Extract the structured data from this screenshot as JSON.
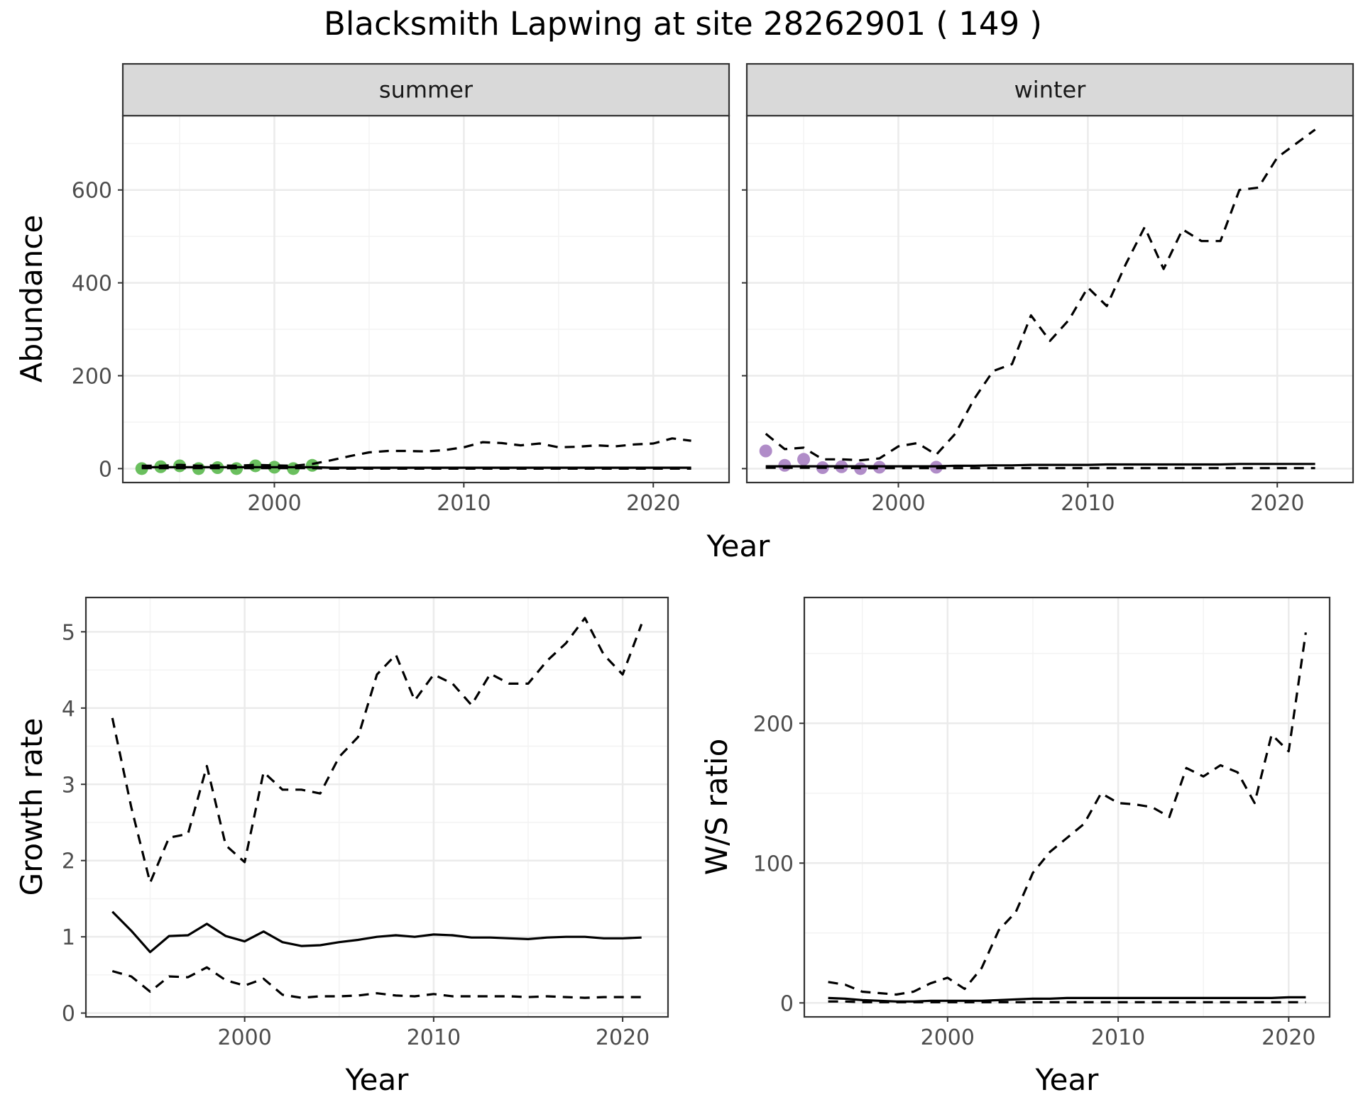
{
  "title": "Blacksmith Lapwing at site 28262901 ( 149 )",
  "colors": {
    "summer_points": "#6abf5e",
    "winter_points": "#b08cc8",
    "line": "#000000",
    "strip_bg": "#d9d9d9",
    "grid": "#ebebeb"
  },
  "chart_data": [
    {
      "type": "line",
      "facet": "summer",
      "xlabel": "Year",
      "ylabel": "Abundance",
      "xlim": [
        1992,
        2024
      ],
      "ylim": [
        -30,
        760
      ],
      "x_ticks": [
        "2000",
        "2010",
        "2020"
      ],
      "y_ticks": [
        "0",
        "200",
        "400",
        "600"
      ],
      "grid": true,
      "series": [
        {
          "style": "points",
          "x": [
            1993,
            1994,
            1995,
            1996,
            1997,
            1998,
            1999,
            2000,
            2001,
            2002
          ],
          "y": [
            0,
            4,
            6,
            0,
            2,
            0,
            6,
            3,
            0,
            7
          ]
        },
        {
          "style": "solid",
          "x": [
            1993,
            1994,
            1995,
            1996,
            1997,
            1998,
            1999,
            2000,
            2001,
            2002,
            2003,
            2004,
            2005,
            2006,
            2007,
            2008,
            2009,
            2010,
            2011,
            2012,
            2013,
            2014,
            2015,
            2016,
            2017,
            2018,
            2019,
            2020,
            2021,
            2022
          ],
          "y": [
            3,
            3,
            3,
            3,
            3,
            3,
            3,
            3,
            3,
            3,
            2,
            2,
            2,
            2,
            2,
            2,
            2,
            2,
            2,
            2,
            2,
            2,
            2,
            2,
            2,
            2,
            2,
            2,
            2,
            2
          ]
        },
        {
          "style": "dashed",
          "x": [
            1993,
            1994,
            1995,
            1996,
            1997,
            1998,
            1999,
            2000,
            2001,
            2002,
            2003,
            2004,
            2005,
            2006,
            2007,
            2008,
            2009,
            2010,
            2011,
            2012,
            2013,
            2014,
            2015,
            2016,
            2017,
            2018,
            2019,
            2020,
            2021,
            2022
          ],
          "y": [
            6,
            6,
            8,
            6,
            7,
            6,
            8,
            7,
            6,
            10,
            18,
            27,
            35,
            38,
            38,
            37,
            40,
            46,
            57,
            55,
            50,
            54,
            46,
            47,
            50,
            48,
            52,
            54,
            65,
            60
          ]
        },
        {
          "style": "dashed",
          "x": [
            1993,
            1994,
            1995,
            1996,
            1997,
            1998,
            1999,
            2000,
            2001,
            2002,
            2003,
            2004,
            2005,
            2006,
            2007,
            2008,
            2009,
            2010,
            2011,
            2012,
            2013,
            2014,
            2015,
            2016,
            2017,
            2018,
            2019,
            2020,
            2021,
            2022
          ],
          "y": [
            1,
            1,
            1,
            1,
            1,
            1,
            1,
            1,
            1,
            1,
            0,
            0,
            0,
            0,
            0,
            0,
            0,
            0,
            0,
            0,
            0,
            0,
            0,
            0,
            0,
            0,
            0,
            0,
            0,
            0
          ]
        }
      ]
    },
    {
      "type": "line",
      "facet": "winter",
      "xlabel": "Year",
      "ylabel": "Abundance",
      "xlim": [
        1992,
        2024
      ],
      "ylim": [
        -30,
        760
      ],
      "x_ticks": [
        "2000",
        "2010",
        "2020"
      ],
      "y_ticks": [
        "0",
        "200",
        "400",
        "600"
      ],
      "grid": true,
      "series": [
        {
          "style": "points",
          "x": [
            1993,
            1994,
            1995,
            1996,
            1997,
            1998,
            1999,
            2002
          ],
          "y": [
            38,
            7,
            20,
            2,
            4,
            0,
            3,
            3
          ]
        },
        {
          "style": "solid",
          "x": [
            1993,
            1994,
            1995,
            1996,
            1997,
            1998,
            1999,
            2000,
            2001,
            2002,
            2003,
            2004,
            2005,
            2006,
            2007,
            2008,
            2009,
            2010,
            2011,
            2012,
            2013,
            2014,
            2015,
            2016,
            2017,
            2018,
            2019,
            2020,
            2021,
            2022
          ],
          "y": [
            5,
            5,
            5,
            5,
            5,
            5,
            5,
            5,
            5,
            5,
            6,
            6,
            7,
            7,
            8,
            8,
            8,
            8,
            9,
            9,
            9,
            9,
            9,
            9,
            9,
            10,
            10,
            10,
            10,
            10
          ]
        },
        {
          "style": "dashed",
          "x": [
            1993,
            1994,
            1995,
            1996,
            1997,
            1998,
            1999,
            2000,
            2001,
            2002,
            2003,
            2004,
            2005,
            2006,
            2007,
            2008,
            2009,
            2010,
            2011,
            2012,
            2013,
            2014,
            2015,
            2016,
            2017,
            2018,
            2019,
            2020,
            2021,
            2022
          ],
          "y": [
            75,
            42,
            45,
            20,
            20,
            18,
            22,
            48,
            55,
            30,
            75,
            150,
            210,
            225,
            330,
            275,
            320,
            390,
            350,
            440,
            520,
            430,
            515,
            490,
            490,
            600,
            605,
            670,
            700,
            730
          ]
        },
        {
          "style": "dashed",
          "x": [
            1993,
            1994,
            1995,
            1996,
            1997,
            1998,
            1999,
            2000,
            2001,
            2002,
            2003,
            2004,
            2005,
            2006,
            2007,
            2008,
            2009,
            2010,
            2011,
            2012,
            2013,
            2014,
            2015,
            2016,
            2017,
            2018,
            2019,
            2020,
            2021,
            2022
          ],
          "y": [
            2,
            2,
            2,
            2,
            2,
            1,
            1,
            1,
            1,
            1,
            1,
            1,
            1,
            1,
            1,
            1,
            1,
            1,
            1,
            1,
            1,
            1,
            1,
            1,
            1,
            1,
            1,
            1,
            1,
            1
          ]
        }
      ]
    },
    {
      "type": "line",
      "xlabel": "Year",
      "ylabel": "Growth rate",
      "xlim": [
        1991.6,
        2022.4
      ],
      "ylim": [
        -0.05,
        5.45
      ],
      "x_ticks": [
        "2000",
        "2010",
        "2020"
      ],
      "y_ticks": [
        "0",
        "1",
        "2",
        "3",
        "4",
        "5"
      ],
      "grid": true,
      "series": [
        {
          "style": "solid",
          "x": [
            1993,
            1994,
            1995,
            1996,
            1997,
            1998,
            1999,
            2000,
            2001,
            2002,
            2003,
            2004,
            2005,
            2006,
            2007,
            2008,
            2009,
            2010,
            2011,
            2012,
            2013,
            2014,
            2015,
            2016,
            2017,
            2018,
            2019,
            2020,
            2021
          ],
          "y": [
            1.33,
            1.08,
            0.8,
            1.01,
            1.02,
            1.17,
            1.01,
            0.94,
            1.07,
            0.93,
            0.88,
            0.89,
            0.93,
            0.96,
            1.0,
            1.02,
            1.0,
            1.03,
            1.02,
            0.99,
            0.99,
            0.98,
            0.97,
            0.99,
            1.0,
            1.0,
            0.98,
            0.98,
            0.99
          ]
        },
        {
          "style": "dashed",
          "x": [
            1993,
            1994,
            1995,
            1996,
            1997,
            1998,
            1999,
            2000,
            2001,
            2002,
            2003,
            2004,
            2005,
            2006,
            2007,
            2008,
            2009,
            2010,
            2011,
            2012,
            2013,
            2014,
            2015,
            2016,
            2017,
            2018,
            2019,
            2020,
            2021
          ],
          "y": [
            3.87,
            2.7,
            1.71,
            2.3,
            2.35,
            3.24,
            2.2,
            1.98,
            3.16,
            2.93,
            2.93,
            2.88,
            3.36,
            3.62,
            4.44,
            4.7,
            4.1,
            4.44,
            4.32,
            4.04,
            4.45,
            4.32,
            4.32,
            4.62,
            4.85,
            5.18,
            4.7,
            4.44,
            5.1
          ]
        },
        {
          "style": "dashed",
          "x": [
            1993,
            1994,
            1995,
            1996,
            1997,
            1998,
            1999,
            2000,
            2001,
            2002,
            2003,
            2004,
            2005,
            2006,
            2007,
            2008,
            2009,
            2010,
            2011,
            2012,
            2013,
            2014,
            2015,
            2016,
            2017,
            2018,
            2019,
            2020,
            2021
          ],
          "y": [
            0.55,
            0.48,
            0.28,
            0.48,
            0.47,
            0.6,
            0.43,
            0.36,
            0.45,
            0.24,
            0.2,
            0.22,
            0.22,
            0.23,
            0.26,
            0.23,
            0.22,
            0.25,
            0.22,
            0.22,
            0.22,
            0.22,
            0.21,
            0.22,
            0.21,
            0.2,
            0.21,
            0.21,
            0.21
          ]
        }
      ]
    },
    {
      "type": "line",
      "xlabel": "Year",
      "ylabel": "W/S ratio",
      "xlim": [
        1991.6,
        2022.4
      ],
      "ylim": [
        -10,
        290
      ],
      "x_ticks": [
        "2000",
        "2010",
        "2020"
      ],
      "y_ticks": [
        "0",
        "100",
        "200"
      ],
      "grid": true,
      "series": [
        {
          "style": "solid",
          "x": [
            1993,
            1994,
            1995,
            1996,
            1997,
            1998,
            1999,
            2000,
            2001,
            2002,
            2003,
            2004,
            2005,
            2006,
            2007,
            2008,
            2009,
            2010,
            2011,
            2012,
            2013,
            2014,
            2015,
            2016,
            2017,
            2018,
            2019,
            2020,
            2021
          ],
          "y": [
            3.5,
            3,
            2,
            1.5,
            1,
            1,
            1.5,
            1.5,
            1.5,
            1.5,
            2,
            2.5,
            3,
            3,
            3.5,
            3.5,
            3.5,
            3.5,
            3.5,
            3.5,
            3.5,
            3.5,
            3.5,
            3.5,
            3.5,
            3.5,
            3.5,
            4,
            4
          ]
        },
        {
          "style": "dashed",
          "x": [
            1993,
            1994,
            1995,
            1996,
            1997,
            1998,
            1999,
            2000,
            2001,
            2002,
            2003,
            2004,
            2005,
            2006,
            2007,
            2008,
            2009,
            2010,
            2011,
            2012,
            2013,
            2014,
            2015,
            2016,
            2017,
            2018,
            2019,
            2020,
            2021
          ],
          "y": [
            15,
            13,
            8,
            7,
            6,
            8,
            14,
            18,
            10,
            25,
            52,
            65,
            93,
            108,
            118,
            128,
            150,
            143,
            142,
            140,
            133,
            168,
            162,
            170,
            165,
            143,
            192,
            180,
            265
          ]
        },
        {
          "style": "dashed",
          "x": [
            1993,
            1994,
            1995,
            1996,
            1997,
            1998,
            1999,
            2000,
            2001,
            2002,
            2003,
            2004,
            2005,
            2006,
            2007,
            2008,
            2009,
            2010,
            2011,
            2012,
            2013,
            2014,
            2015,
            2016,
            2017,
            2018,
            2019,
            2020,
            2021
          ],
          "y": [
            1,
            1,
            0.5,
            0.5,
            0.5,
            0.5,
            0.5,
            0.5,
            0.5,
            0.5,
            0.5,
            0.5,
            0.5,
            0.5,
            0.5,
            0.5,
            0.5,
            0.5,
            0.5,
            0.5,
            0.5,
            0.5,
            0.5,
            0.5,
            0.5,
            0.5,
            0.5,
            0.5,
            0.5
          ]
        }
      ]
    }
  ]
}
